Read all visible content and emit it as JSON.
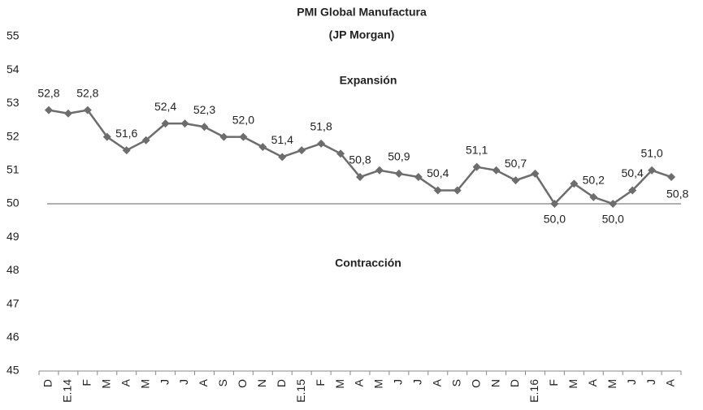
{
  "chart_data": {
    "type": "line",
    "title": "PMI Global Manufactura",
    "subtitle": "(JP Morgan)",
    "annotations": [
      "Expansión",
      "Contracción"
    ],
    "categories": [
      "D",
      "E.14",
      "F",
      "M",
      "A",
      "M",
      "J",
      "J",
      "A",
      "S",
      "O",
      "N",
      "D",
      "E.15",
      "F",
      "M",
      "A",
      "M",
      "J",
      "J",
      "A",
      "S",
      "O",
      "N",
      "D",
      "E.16",
      "F",
      "M",
      "A",
      "M",
      "J",
      "J",
      "A"
    ],
    "series": [
      {
        "name": "PMI",
        "color": "#6d6d6d",
        "values": [
          52.8,
          52.7,
          52.8,
          52.0,
          51.6,
          51.9,
          52.4,
          52.4,
          52.3,
          52.0,
          52.0,
          51.7,
          51.4,
          51.6,
          51.8,
          51.5,
          50.8,
          51.0,
          50.9,
          50.8,
          50.4,
          50.4,
          51.1,
          51.0,
          50.7,
          50.9,
          50.0,
          50.6,
          50.2,
          50.0,
          50.4,
          51.0,
          50.8
        ],
        "value_labels": [
          "52,8",
          null,
          "52,8",
          null,
          "51,6",
          null,
          "52,4",
          null,
          "52,3",
          null,
          "52,0",
          null,
          "51,4",
          null,
          "51,8",
          null,
          "50,8",
          null,
          "50,9",
          null,
          "50,4",
          null,
          "51,1",
          null,
          "50,7",
          null,
          "50,0",
          null,
          "50,2",
          "50,0",
          "50,4",
          "51,0",
          "50,8"
        ]
      }
    ],
    "ylim": [
      45,
      55
    ],
    "yticks": [
      45,
      46,
      47,
      48,
      49,
      50,
      51,
      52,
      53,
      54,
      55
    ],
    "reference_line": {
      "value": 50,
      "color": "#b0b0b0"
    },
    "grid": false
  }
}
